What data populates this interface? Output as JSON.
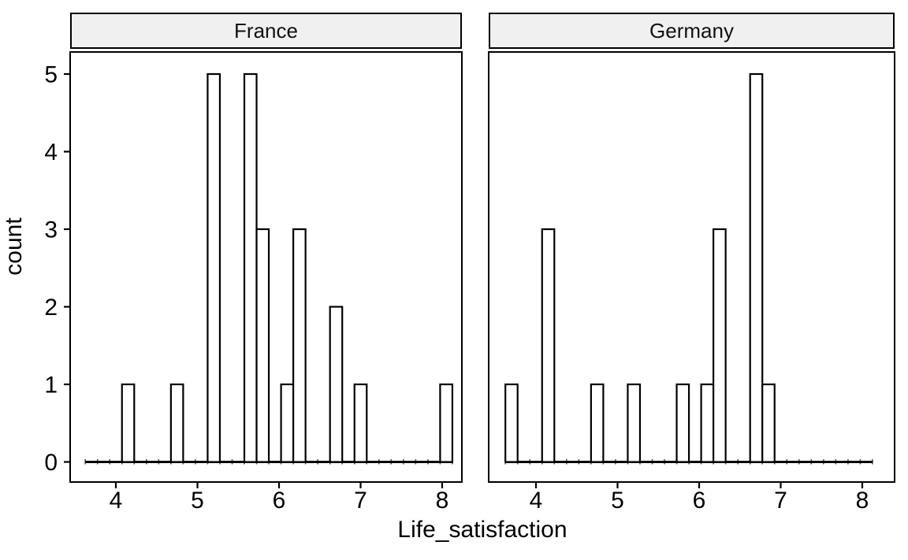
{
  "chart_data": {
    "type": "bar",
    "subtype": "faceted-histogram",
    "title": "",
    "xlabel": "Life_satisfaction",
    "ylabel": "count",
    "binwidth": 0.15,
    "x_ticks": [
      4,
      5,
      6,
      7,
      8
    ],
    "y_ticks": [
      0,
      1,
      2,
      3,
      4,
      5
    ],
    "xlim": [
      3.44,
      8.25
    ],
    "ylim": [
      -0.25,
      5.25
    ],
    "baseline_span": [
      3.625,
      8.125
    ],
    "grid": "off",
    "legend": "none",
    "facets": [
      {
        "label": "France",
        "bins": [
          {
            "center": 4.15,
            "count": 1
          },
          {
            "center": 4.75,
            "count": 1
          },
          {
            "center": 5.2,
            "count": 5
          },
          {
            "center": 5.65,
            "count": 5
          },
          {
            "center": 5.8,
            "count": 3
          },
          {
            "center": 6.1,
            "count": 1
          },
          {
            "center": 6.25,
            "count": 3
          },
          {
            "center": 6.7,
            "count": 2
          },
          {
            "center": 7.0,
            "count": 1
          },
          {
            "center": 8.05,
            "count": 1
          }
        ]
      },
      {
        "label": "Germany",
        "bins": [
          {
            "center": 3.7,
            "count": 1
          },
          {
            "center": 4.15,
            "count": 3
          },
          {
            "center": 4.75,
            "count": 1
          },
          {
            "center": 5.2,
            "count": 1
          },
          {
            "center": 5.8,
            "count": 1
          },
          {
            "center": 6.1,
            "count": 1
          },
          {
            "center": 6.25,
            "count": 3
          },
          {
            "center": 6.7,
            "count": 5
          },
          {
            "center": 6.85,
            "count": 1
          }
        ]
      }
    ],
    "colors": {
      "background": "#ffffff",
      "bar_fill": "#ffffff",
      "bar_stroke": "#000000",
      "panel_border": "#000000",
      "strip_bg": "#f0f0f0",
      "strip_border": "#000000",
      "axis_text": "#000000",
      "baseline": "#000000"
    }
  }
}
